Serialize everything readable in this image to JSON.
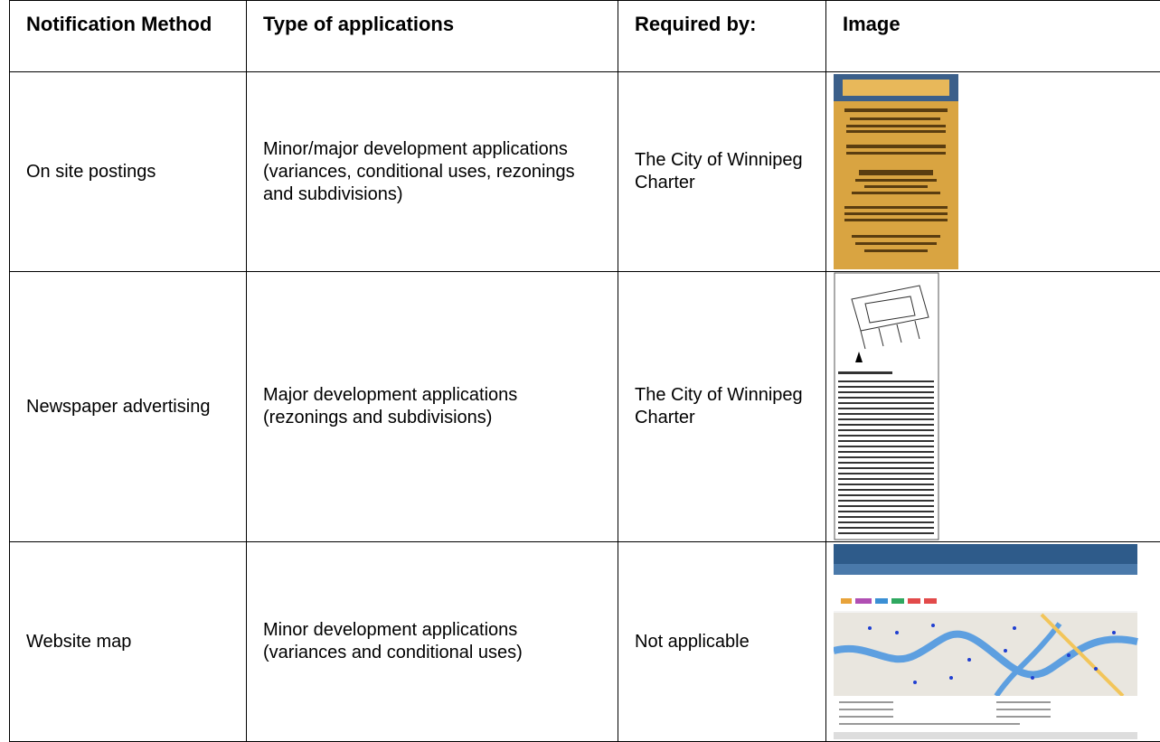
{
  "table": {
    "header": [
      "Notification Method",
      "Type of applications",
      "Required by:",
      "Image"
    ],
    "rows": [
      [
        "On site postings",
        "Minor/major development applications (variances, conditional uses, rezonings and subdivisions)",
        "The City of Winnipeg Charter"
      ],
      [
        "Newspaper advertising",
        "Major development applications (rezonings and subdivisions)",
        "The City of Winnipeg Charter"
      ],
      [
        "Website map",
        "Minor development applications (variances and conditional uses)",
        "Not applicable"
      ]
    ]
  }
}
